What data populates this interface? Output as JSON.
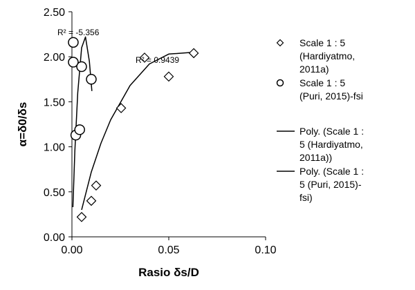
{
  "chart_data": {
    "type": "scatter",
    "xlabel": "Rasio δs/D",
    "ylabel": "α=δ0/δs",
    "xlim": [
      0,
      0.1
    ],
    "ylim": [
      0,
      2.5
    ],
    "xticks": [
      {
        "value": 0,
        "label": "0.00"
      },
      {
        "value": 0.05,
        "label": "0.05"
      },
      {
        "value": 0.1,
        "label": "0.10"
      }
    ],
    "yticks": [
      {
        "value": 0,
        "label": "0.00"
      },
      {
        "value": 0.5,
        "label": "0.50"
      },
      {
        "value": 1,
        "label": "1.00"
      },
      {
        "value": 1.5,
        "label": "1.50"
      },
      {
        "value": 2,
        "label": "2.00"
      },
      {
        "value": 2.5,
        "label": "2.50"
      }
    ],
    "grid": false,
    "legend": "right",
    "series": [
      {
        "name": "Scale 1 : 5 (Hardiyatmo, 2011a)",
        "marker": "diamond",
        "color": "#000000",
        "x": [
          0.005,
          0.01,
          0.0125,
          0.0254,
          0.0375,
          0.05,
          0.0629
        ],
        "values": [
          0.22,
          0.4,
          0.57,
          1.43,
          1.99,
          1.78,
          2.04
        ]
      },
      {
        "name": "Scale 1 : 5 (Puri, 2015)-fsi",
        "marker": "circle",
        "color": "#000000",
        "x": [
          0.0007,
          0.0007,
          0.005,
          0.01,
          0.002,
          0.004
        ],
        "values": [
          2.16,
          1.94,
          1.89,
          1.75,
          1.13,
          1.19
        ]
      },
      {
        "name": "Poly. (Scale 1 : 5 (Hardiyatmo, 2011a))",
        "marker": "line",
        "color": "#000000",
        "x": [
          0.005,
          0.01,
          0.015,
          0.02,
          0.03,
          0.04,
          0.05,
          0.063
        ],
        "values": [
          0.3,
          0.72,
          1.04,
          1.3,
          1.68,
          1.92,
          2.03,
          2.05
        ]
      },
      {
        "name": "Poly. (Scale 1 : 5 (Puri, 2015)-fsi)",
        "marker": "line",
        "color": "#000000",
        "x": [
          0.0005,
          0.0015,
          0.003,
          0.005,
          0.007,
          0.009,
          0.0103
        ],
        "values": [
          0.33,
          0.95,
          1.6,
          2.1,
          2.22,
          1.95,
          1.62
        ]
      }
    ],
    "annotations": [
      {
        "text": "R² = -5.356"
      },
      {
        "text": "R² = 0.9439"
      }
    ]
  }
}
